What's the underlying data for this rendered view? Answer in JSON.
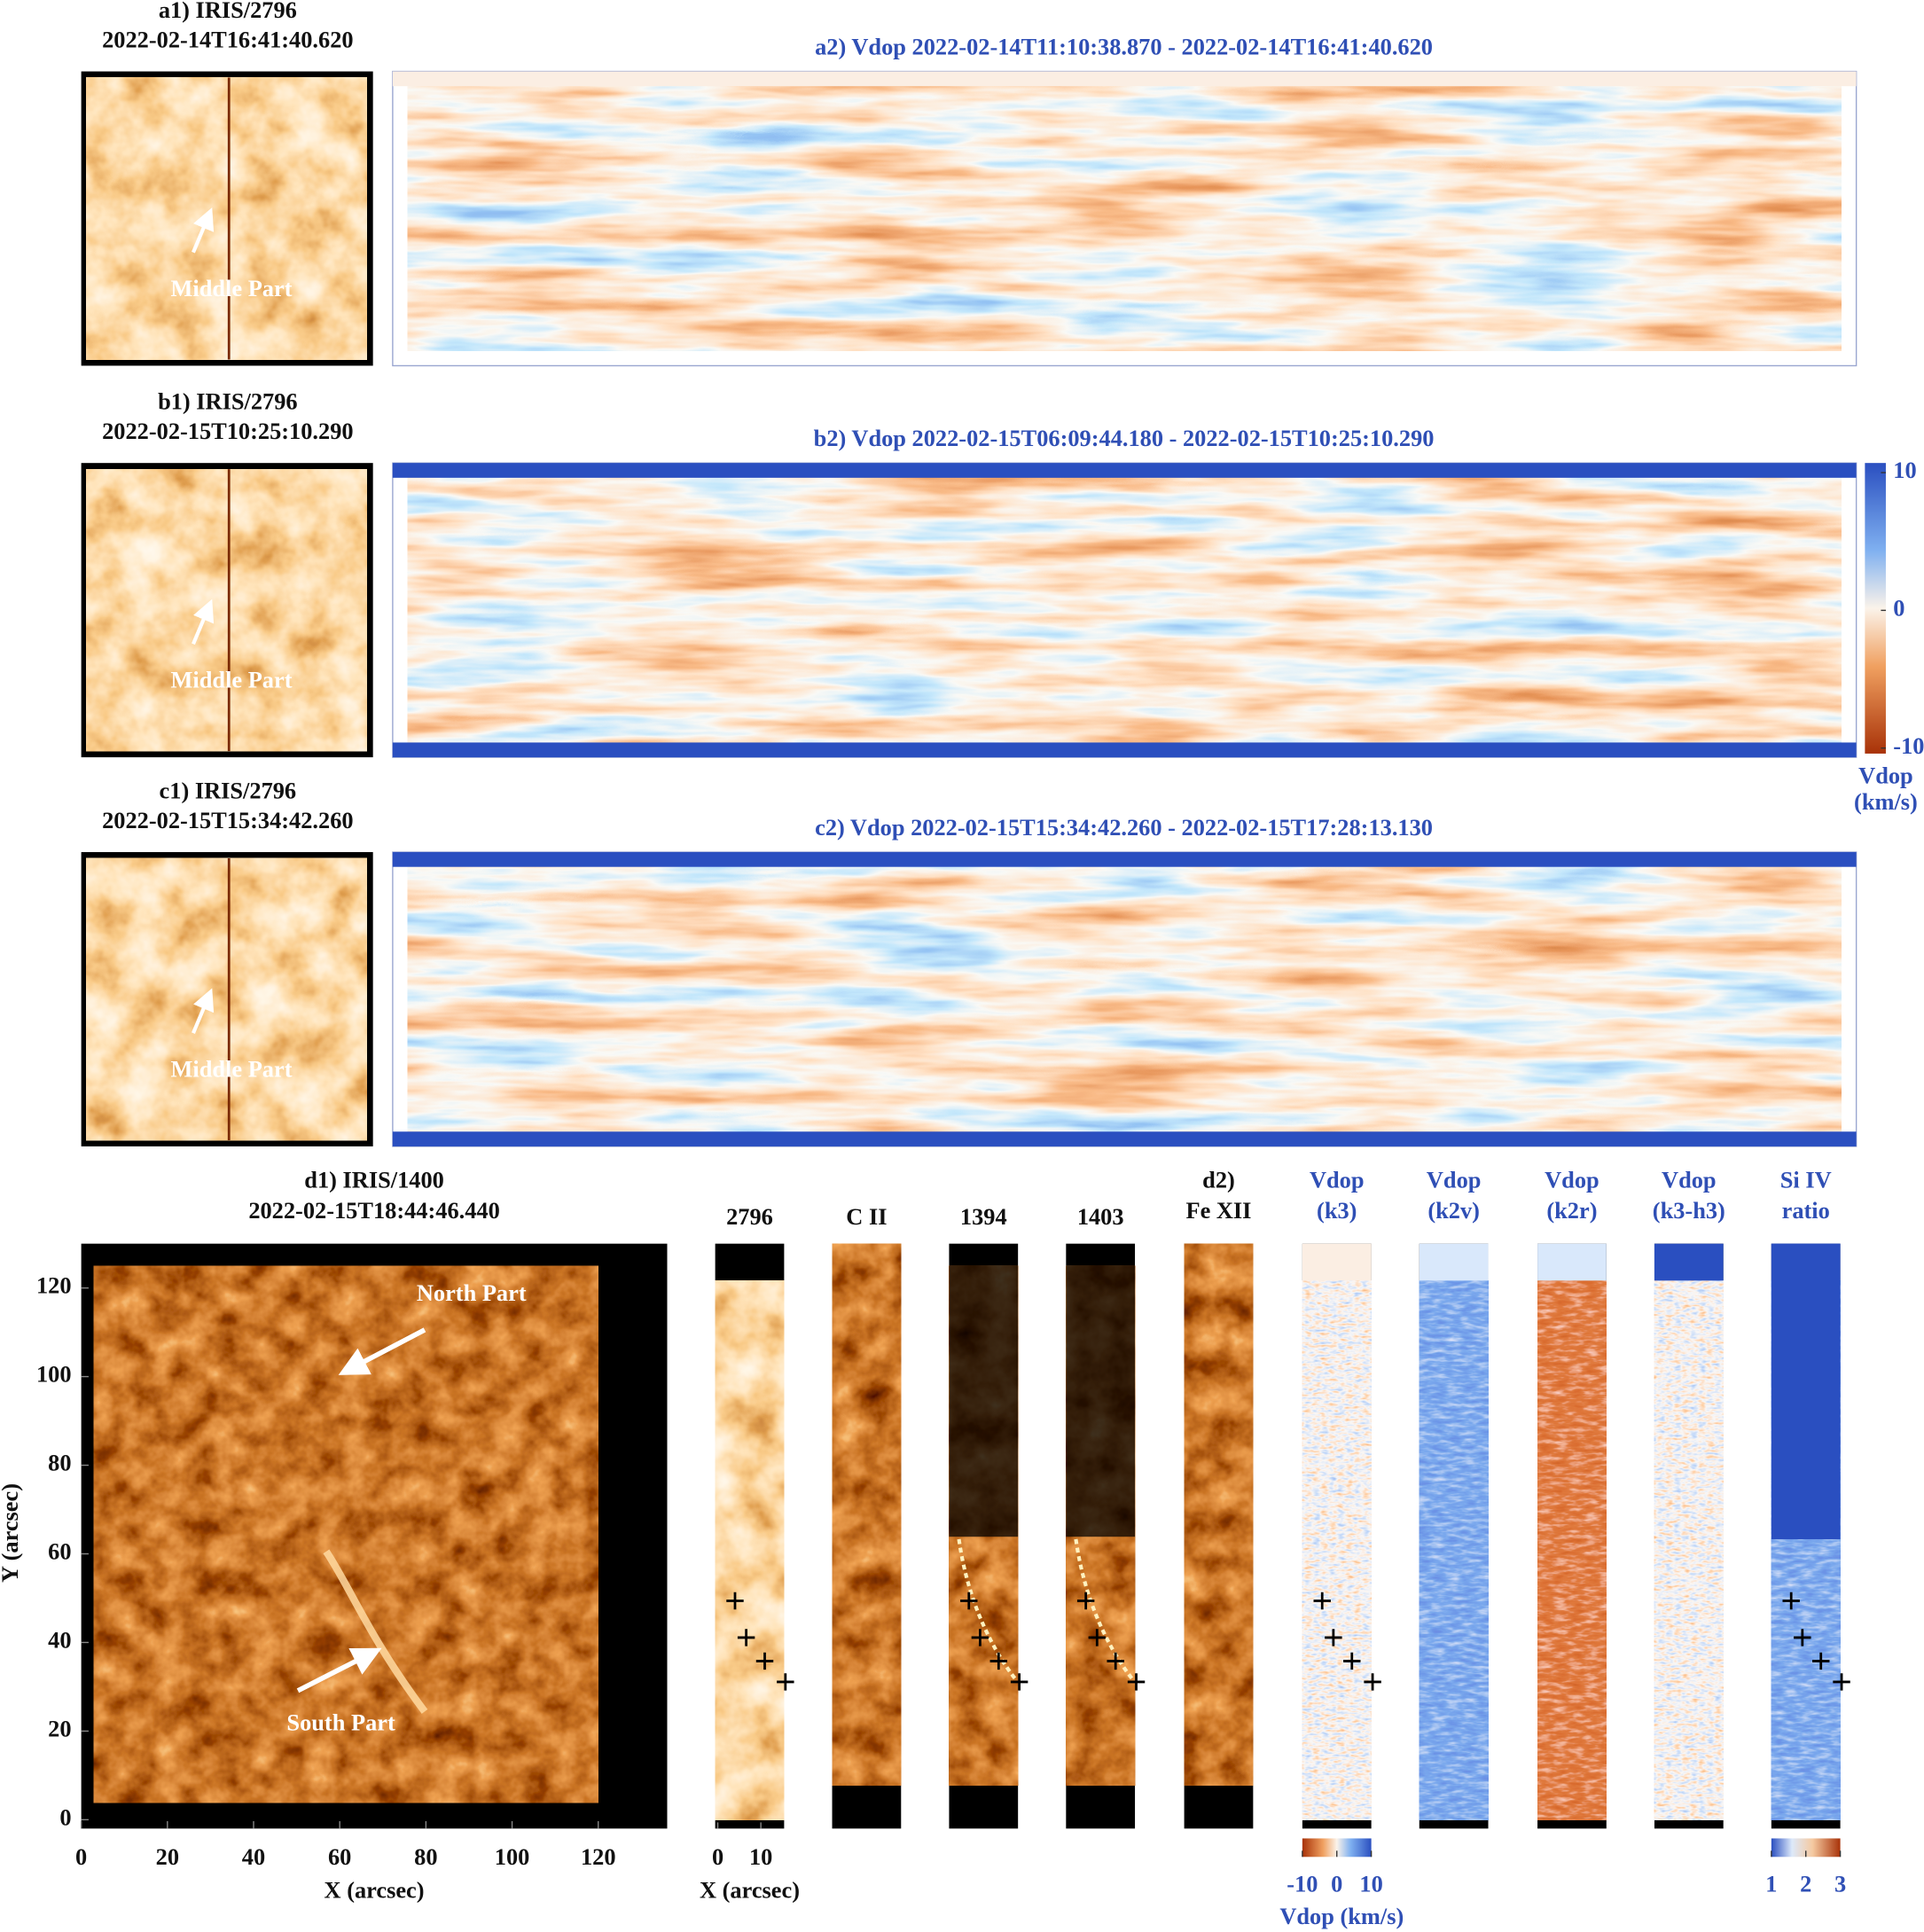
{
  "rows": [
    {
      "left_title": "a1) IRIS/2796",
      "left_time": "2022-02-14T16:41:40.620",
      "annotation": "Middle Part",
      "right_title": "a2) Vdop 2022-02-14T11:10:38.870 - 2022-02-14T16:41:40.620"
    },
    {
      "left_title": "b1) IRIS/2796",
      "left_time": "2022-02-15T10:25:10.290",
      "annotation": "Middle Part",
      "right_title": "b2) Vdop 2022-02-15T06:09:44.180 - 2022-02-15T10:25:10.290"
    },
    {
      "left_title": "c1) IRIS/2796",
      "left_time": "2022-02-15T15:34:42.260",
      "annotation": "Middle Part",
      "right_title": "c2) Vdop 2022-02-15T15:34:42.260 - 2022-02-15T17:28:13.130"
    }
  ],
  "vdop_colorbar": {
    "lim": [
      -10.4,
      10.7
    ],
    "ticks": [
      10,
      0,
      -10
    ],
    "label_line1": "Vdop",
    "label_line2": "(km/s)"
  },
  "d1": {
    "title": "d1) IRIS/1400",
    "time": "2022-02-15T18:44:46.440",
    "north": "North Part",
    "south": "South Part",
    "xlabel": "X (arcsec)",
    "ylabel": "Y (arcsec)",
    "xlim": [
      0,
      136
    ],
    "ylim": [
      -2,
      130
    ],
    "xticks": [
      0,
      20,
      40,
      60,
      80,
      100,
      120
    ],
    "yticks": [
      0,
      20,
      40,
      60,
      80,
      100,
      120
    ]
  },
  "strips": {
    "titles": [
      [
        "2796"
      ],
      [
        "C II"
      ],
      [
        "1394"
      ],
      [
        "1403"
      ],
      [
        "d2)",
        "Fe XII"
      ],
      [
        "Vdop",
        "(k3)"
      ],
      [
        "Vdop",
        "(k2v)"
      ],
      [
        "Vdop",
        "(k2r)"
      ],
      [
        "Vdop",
        "(k3-h3)"
      ],
      [
        "Si IV",
        "ratio"
      ]
    ],
    "xlim": [
      -0.6,
      15.4
    ],
    "xticks": [
      0,
      10
    ],
    "xlabel": "X (arcsec)",
    "markers": {
      "x": [
        4,
        6.6,
        10.9,
        15.7
      ],
      "y": [
        49.4,
        41.1,
        35.8,
        31.1
      ]
    }
  },
  "k3_colorbar": {
    "lim": [
      -10,
      10
    ],
    "ticks": [
      -10,
      0,
      10
    ],
    "label": "Vdop (km/s)"
  },
  "ratio_colorbar": {
    "lim": [
      1,
      3
    ],
    "ticks": [
      1,
      2,
      3
    ]
  }
}
